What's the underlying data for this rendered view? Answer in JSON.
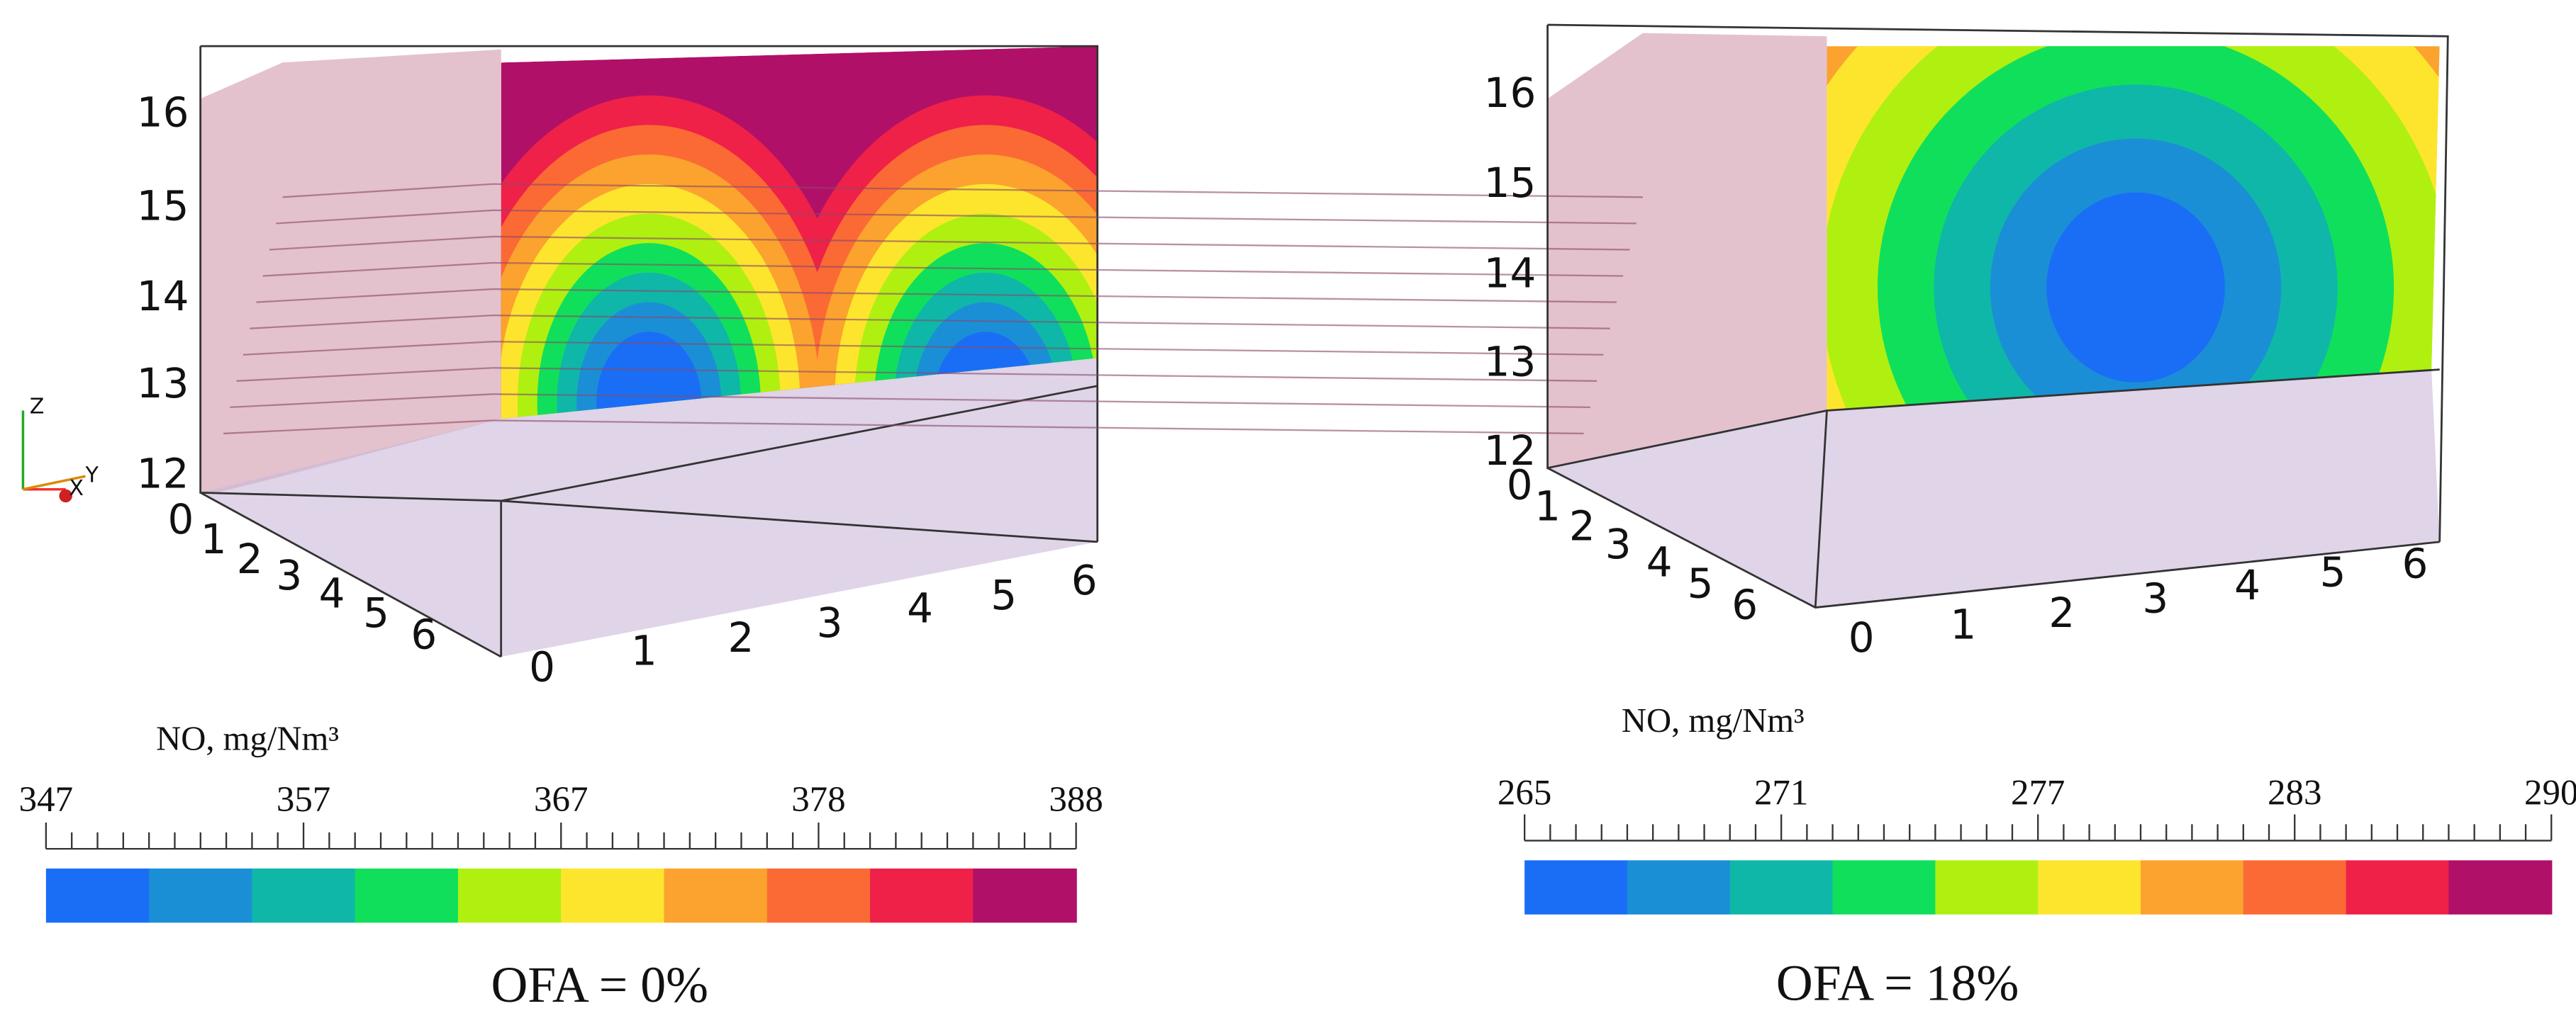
{
  "panels": [
    {
      "z_ticks": [
        12,
        13,
        14,
        15,
        16
      ],
      "y_ticks": [
        0,
        1,
        2,
        3,
        4,
        5,
        6
      ],
      "x_ticks": [
        0,
        1,
        2,
        3,
        4,
        5,
        6
      ],
      "colorbar": {
        "label": "NO, mg/Nm³",
        "ticks": [
          347,
          357,
          367,
          378,
          388
        ],
        "colors": [
          "#1a6ef5",
          "#1a8fd6",
          "#0fb7a8",
          "#10df5c",
          "#b0f010",
          "#fde52e",
          "#fba32e",
          "#fb6a35",
          "#ef2148",
          "#b01068"
        ]
      },
      "caption": "OFA = 0%"
    },
    {
      "z_ticks": [
        12,
        13,
        14,
        15,
        16
      ],
      "y_ticks": [
        0,
        1,
        2,
        3,
        4,
        5,
        6
      ],
      "x_ticks": [
        0,
        1,
        2,
        3,
        4,
        5,
        6
      ],
      "colorbar": {
        "label": "NO, mg/Nm³",
        "ticks": [
          265,
          271,
          277,
          283,
          290
        ],
        "colors": [
          "#1a6ef5",
          "#1a8fd6",
          "#0fb7a8",
          "#10df5c",
          "#b0f010",
          "#fde52e",
          "#fba32e",
          "#fb6a35",
          "#ef2148",
          "#b01068"
        ]
      },
      "caption": "OFA = 18%"
    }
  ],
  "axis_triad": {
    "z": "Z",
    "y": "Y",
    "x": "X"
  }
}
